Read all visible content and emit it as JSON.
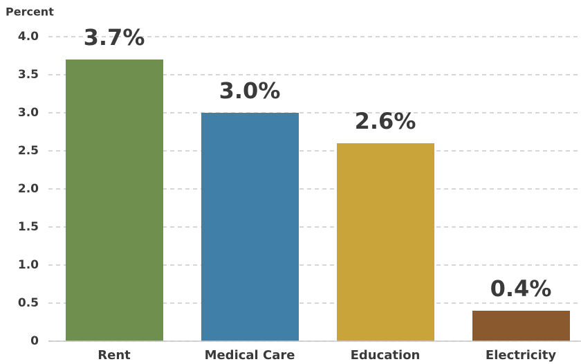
{
  "chart_data": {
    "type": "bar",
    "ylabel": "Percent",
    "categories": [
      "Rent",
      "Medical Care",
      "Education",
      "Electricity"
    ],
    "values": [
      3.7,
      3.0,
      2.6,
      0.4
    ],
    "value_labels": [
      "3.7%",
      "3.0%",
      "2.6%",
      "0.4%"
    ],
    "colors": [
      "#6f8f4e",
      "#3f7fa8",
      "#c9a43a",
      "#8a5a2e"
    ],
    "ylim": [
      0,
      4.0
    ],
    "yticks": [
      0,
      0.5,
      {
        "value": 1.0,
        "label": "1.0"
      },
      1.5,
      {
        "value": 2.0,
        "label": "2.0"
      },
      2.5,
      {
        "value": 3.0,
        "label": "3.0"
      },
      3.5,
      {
        "value": 4.0,
        "label": "4.0"
      }
    ],
    "grid": true
  }
}
